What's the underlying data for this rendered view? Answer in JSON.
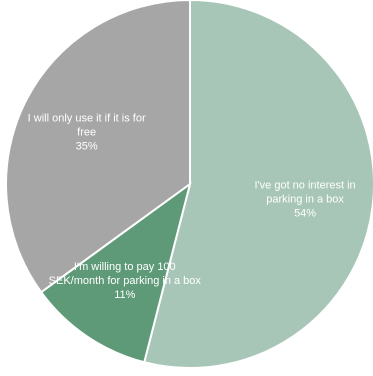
{
  "chart_data": {
    "type": "pie",
    "start_angle_deg": 0,
    "direction": "clockwise",
    "slices": [
      {
        "label_lines": [
          "I've got no interest in",
          "parking in a box",
          "54%"
        ],
        "value": 54,
        "color": "#a7c6b7"
      },
      {
        "label_lines": [
          "I'm willing to pay 100",
          "SEK/month for parking in a box",
          "11%"
        ],
        "value": 11,
        "color": "#5e9a78"
      },
      {
        "label_lines": [
          "I will only use it if it is for",
          "free",
          "35%"
        ],
        "value": 35,
        "color": "#a6a6a6"
      }
    ]
  }
}
